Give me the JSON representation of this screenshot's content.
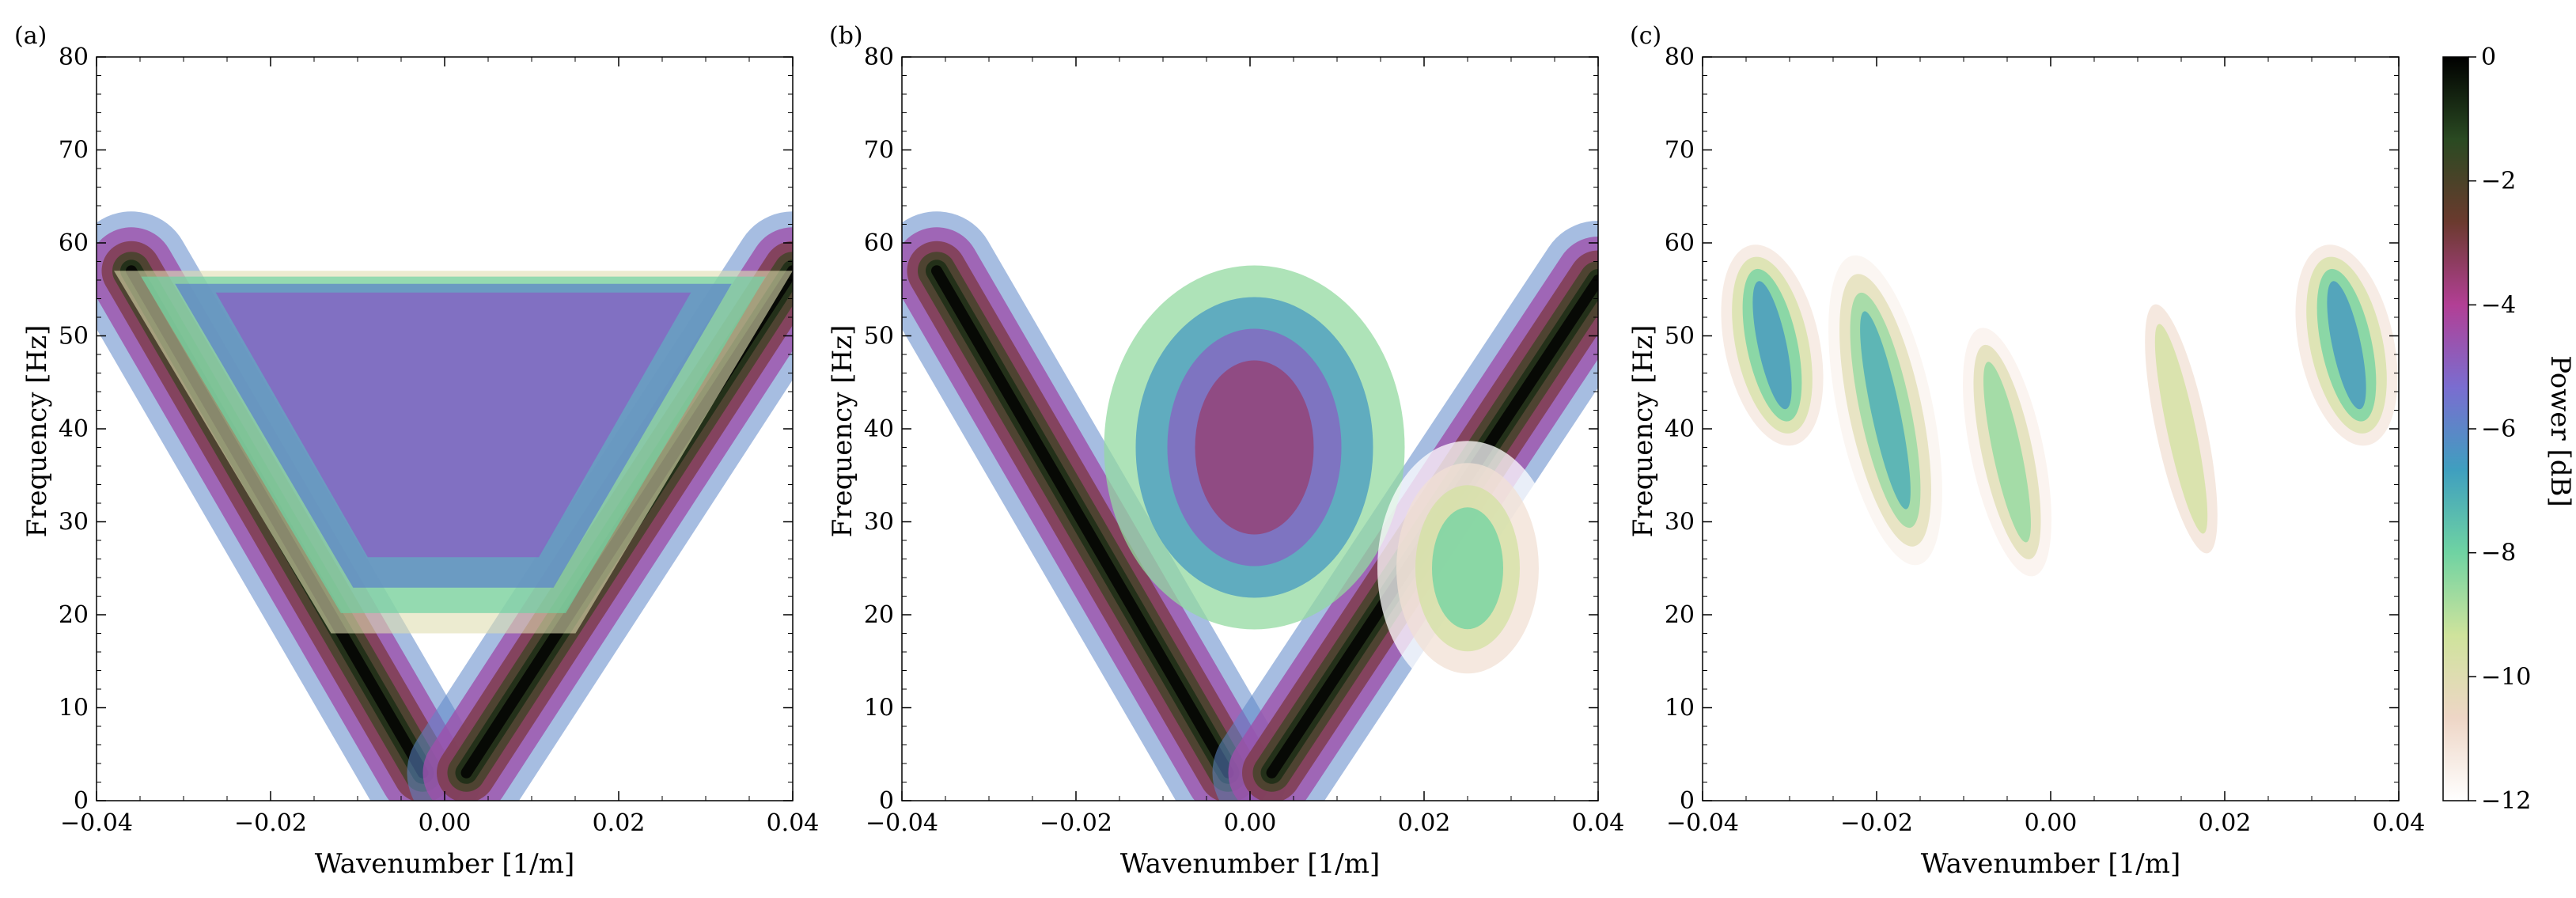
{
  "chart_data": [
    {
      "type": "heatmap",
      "panel_label": "(a)",
      "xlabel": "Wavenumber [1/m]",
      "ylabel": "Frequency [Hz]",
      "xlim": [
        -0.04,
        0.04
      ],
      "ylim": [
        0,
        80
      ],
      "xticks": [
        -0.04,
        -0.02,
        0.0,
        0.02,
        0.04
      ],
      "xtick_labels": [
        "−0.04",
        "−0.02",
        "0.00",
        "0.02",
        "0.04"
      ],
      "yticks": [
        0,
        10,
        20,
        30,
        40,
        50,
        60,
        70,
        80
      ],
      "ytick_labels": [
        "0",
        "10",
        "20",
        "30",
        "40",
        "50",
        "60",
        "70",
        "80"
      ],
      "features": [
        {
          "kind": "band",
          "from": [
            -0.0025,
            3
          ],
          "to": [
            -0.036,
            57
          ],
          "peak_db": 0
        },
        {
          "kind": "band",
          "from": [
            0.0025,
            3
          ],
          "to": [
            0.04,
            57
          ],
          "peak_db": 0
        },
        {
          "kind": "plateau",
          "k_range": [
            -0.038,
            0.04
          ],
          "f_range": [
            18,
            57
          ],
          "level_db": -5
        }
      ]
    },
    {
      "type": "heatmap",
      "panel_label": "(b)",
      "xlabel": "Wavenumber [1/m]",
      "ylabel": "Frequency [Hz]",
      "xlim": [
        -0.04,
        0.04
      ],
      "ylim": [
        0,
        80
      ],
      "xticks": [
        -0.04,
        -0.02,
        0.0,
        0.02,
        0.04
      ],
      "xtick_labels": [
        "−0.04",
        "−0.02",
        "0.00",
        "0.02",
        "0.04"
      ],
      "yticks": [
        0,
        10,
        20,
        30,
        40,
        50,
        60,
        70,
        80
      ],
      "ytick_labels": [
        "0",
        "10",
        "20",
        "30",
        "40",
        "50",
        "60",
        "70",
        "80"
      ],
      "features": [
        {
          "kind": "band",
          "from": [
            -0.0025,
            3
          ],
          "to": [
            -0.036,
            57
          ],
          "peak_db": 0
        },
        {
          "kind": "band",
          "from": [
            0.0025,
            3
          ],
          "to": [
            0.04,
            56
          ],
          "peak_db": 0
        },
        {
          "kind": "blob",
          "k": 0.0005,
          "f": 38,
          "level_db": -3.5
        },
        {
          "kind": "blob",
          "k": 0.025,
          "f": 25,
          "level_db": -8
        }
      ]
    },
    {
      "type": "heatmap",
      "panel_label": "(c)",
      "xlabel": "Wavenumber [1/m]",
      "ylabel": "Frequency [Hz]",
      "xlim": [
        -0.04,
        0.04
      ],
      "ylim": [
        0,
        80
      ],
      "xticks": [
        -0.04,
        -0.02,
        0.0,
        0.02,
        0.04
      ],
      "xtick_labels": [
        "−0.04",
        "−0.02",
        "0.00",
        "0.02",
        "0.04"
      ],
      "yticks": [
        0,
        10,
        20,
        30,
        40,
        50,
        60,
        70,
        80
      ],
      "ytick_labels": [
        "0",
        "10",
        "20",
        "30",
        "40",
        "50",
        "60",
        "70",
        "80"
      ],
      "features": [
        {
          "kind": "streak",
          "k": -0.032,
          "f_range": [
            38,
            60
          ],
          "peak_db": -6.5
        },
        {
          "kind": "streak",
          "k": -0.019,
          "f_range": [
            25,
            59
          ],
          "peak_db": -7
        },
        {
          "kind": "streak",
          "k": -0.005,
          "f_range": [
            22,
            53
          ],
          "peak_db": -8.5
        },
        {
          "kind": "streak",
          "k": 0.015,
          "f_range": [
            22,
            58
          ],
          "peak_db": -9.5
        },
        {
          "kind": "streak",
          "k": 0.034,
          "f_range": [
            38,
            60
          ],
          "peak_db": -6.5
        }
      ]
    }
  ],
  "colorbar": {
    "label": "Power [dB]",
    "range": [
      -12,
      0
    ],
    "ticks": [
      0,
      -2,
      -4,
      -6,
      -8,
      -10,
      -12
    ],
    "tick_labels": [
      "0",
      "−2",
      "−4",
      "−6",
      "−8",
      "−10",
      "−12"
    ],
    "colormap_stops": [
      "#ffffff",
      "#eed6c6",
      "#cfe39c",
      "#6fd3a2",
      "#3f9fbf",
      "#7a6dd0",
      "#b23f95",
      "#6b3a2e",
      "#2a4a22",
      "#000000"
    ]
  }
}
